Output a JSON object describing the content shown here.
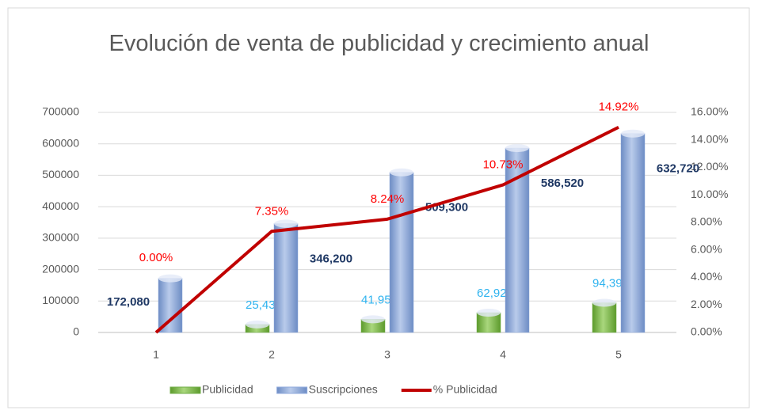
{
  "chart_data": {
    "type": "bar",
    "title": "Evolución de venta de publicidad y crecimiento anual",
    "categories": [
      "1",
      "2",
      "3",
      "4",
      "5"
    ],
    "series": [
      {
        "name": "Publicidad",
        "color": "#70ad47",
        "values": [
          null,
          25438,
          41952,
          62928,
          94392
        ],
        "value_labels": [
          null,
          "25,438",
          "41,952",
          "62,928",
          "94,392"
        ]
      },
      {
        "name": "Suscripciones",
        "color": "#8faadc",
        "values": [
          172080,
          346200,
          509300,
          586520,
          632720
        ],
        "value_labels": [
          "172,080",
          "346,200",
          "509,300",
          "586,520",
          "632,720"
        ]
      },
      {
        "name": "% Publicidad",
        "color": "#c00000",
        "type": "line",
        "axis": "y2",
        "values": [
          0,
          7.35,
          8.24,
          10.73,
          14.92
        ],
        "value_labels": [
          "0.00%",
          "7.35%",
          "8.24%",
          "10.73%",
          "14.92%"
        ]
      }
    ],
    "ylim": [
      0,
      700000
    ],
    "yticks": [
      0,
      100000,
      200000,
      300000,
      400000,
      500000,
      600000,
      700000
    ],
    "y2lim": [
      0,
      16
    ],
    "y2ticks": [
      {
        "value": 0,
        "label": "0.00%"
      },
      {
        "value": 2,
        "label": "2.00%"
      },
      {
        "value": 4,
        "label": "4.00%"
      },
      {
        "value": 6,
        "label": "6.00%"
      },
      {
        "value": 8,
        "label": "8.00%"
      },
      {
        "value": 10,
        "label": "10.00%"
      },
      {
        "value": 12,
        "label": "12.00%"
      },
      {
        "value": 14,
        "label": "14.00%"
      },
      {
        "value": 16,
        "label": "16.00%"
      }
    ],
    "grid": true,
    "legend": "bottom"
  }
}
